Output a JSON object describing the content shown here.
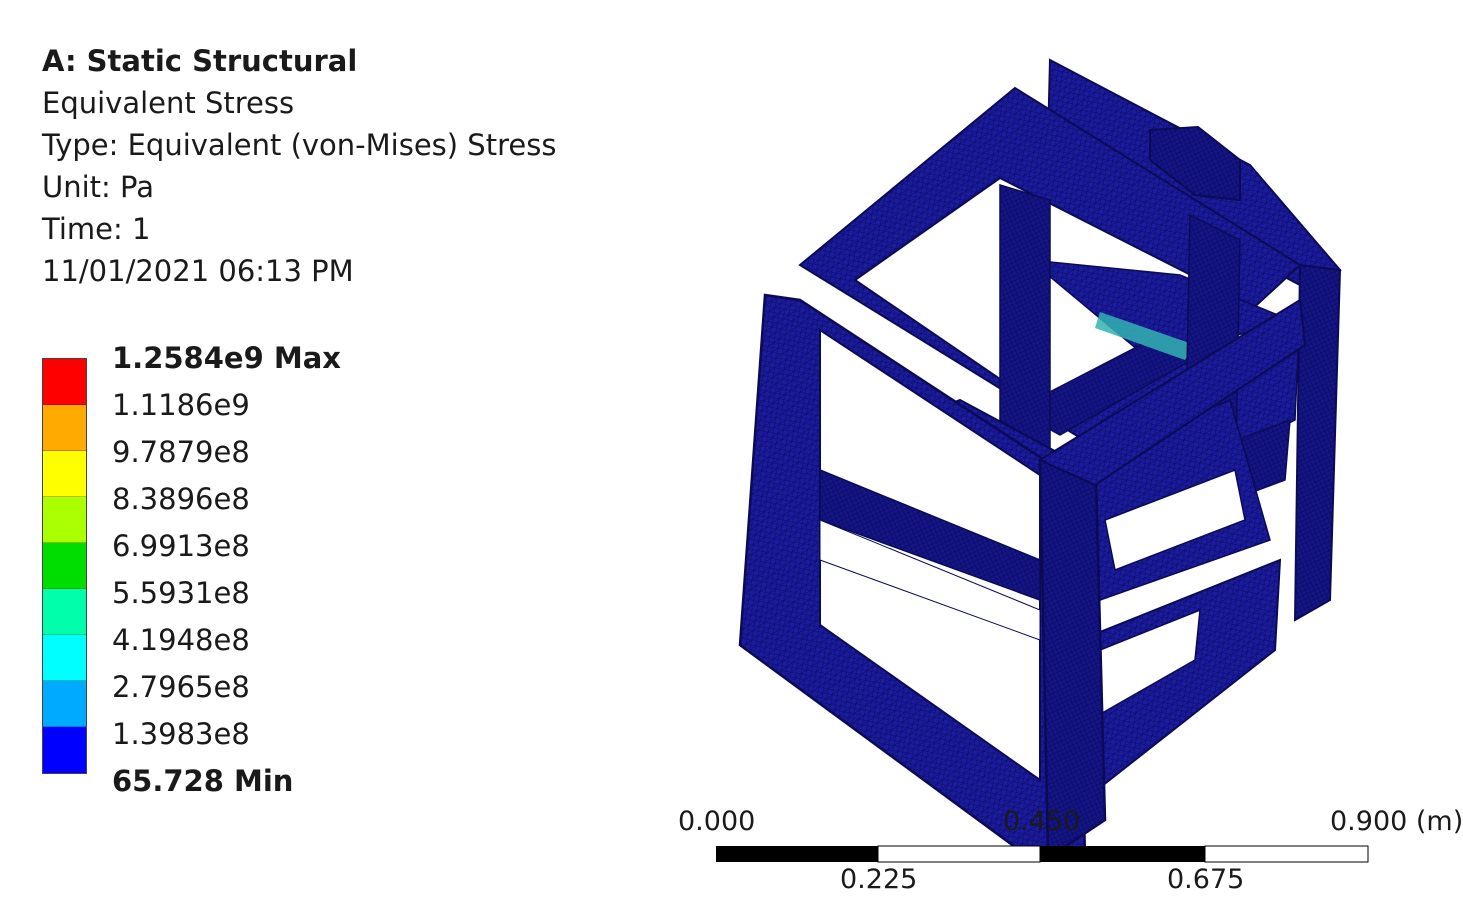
{
  "info": {
    "title": "A: Static Structural",
    "result": "Equivalent Stress",
    "type": "Type: Equivalent (von-Mises) Stress",
    "unit": "Unit: Pa",
    "time": "Time: 1",
    "timestamp": "11/01/2021 06:13 PM"
  },
  "legend": {
    "labels": [
      "1.2584e9 Max",
      "1.1186e9",
      "9.7879e8",
      "8.3896e8",
      "6.9913e8",
      "5.5931e8",
      "4.1948e8",
      "2.7965e8",
      "1.3983e8",
      "65.728 Min"
    ],
    "colors": [
      "#ff0000",
      "#ffaa00",
      "#ffff00",
      "#aaff00",
      "#00dd00",
      "#00ffaa",
      "#00ffff",
      "#00aaff",
      "#0000ff"
    ]
  },
  "scale": {
    "top_left": "0.000",
    "top_mid": "0.450",
    "top_right": "0.900 (m)",
    "bottom_left": "0.225",
    "bottom_right": "0.675"
  },
  "model": {
    "base_color": "#1a1a9a",
    "edge_color": "#0b0b55",
    "hotspot_color": "#33b3b3"
  }
}
